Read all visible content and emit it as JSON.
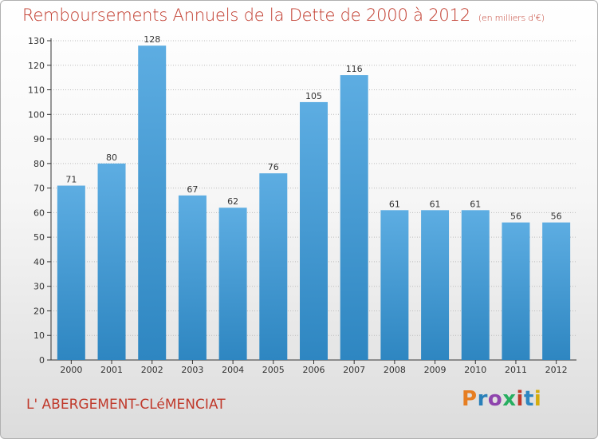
{
  "header": {
    "title": "Remboursements Annuels de la Dette de 2000 à 2012",
    "unit": "(en milliers d'€)"
  },
  "footer": {
    "commune": "L' ABERGEMENT-CLéMENCIAT",
    "logo_text": "Proxiti"
  },
  "colors": {
    "bar_top": "#5dade2",
    "bar_bottom": "#2e86c1",
    "title": "#c0392b",
    "grid": "#bbbbbb"
  },
  "chart_data": {
    "type": "bar",
    "title": "Remboursements Annuels de la Dette de 2000 à 2012",
    "xlabel": "",
    "ylabel": "",
    "categories": [
      "2000",
      "2001",
      "2002",
      "2003",
      "2004",
      "2005",
      "2006",
      "2007",
      "2008",
      "2009",
      "2010",
      "2011",
      "2012"
    ],
    "values": [
      71,
      80,
      128,
      67,
      62,
      76,
      105,
      116,
      61,
      61,
      61,
      56,
      56
    ],
    "ylim": [
      0,
      130
    ],
    "yticks": [
      0,
      10,
      20,
      30,
      40,
      50,
      60,
      70,
      80,
      90,
      100,
      110,
      120,
      130
    ],
    "grid": true
  }
}
